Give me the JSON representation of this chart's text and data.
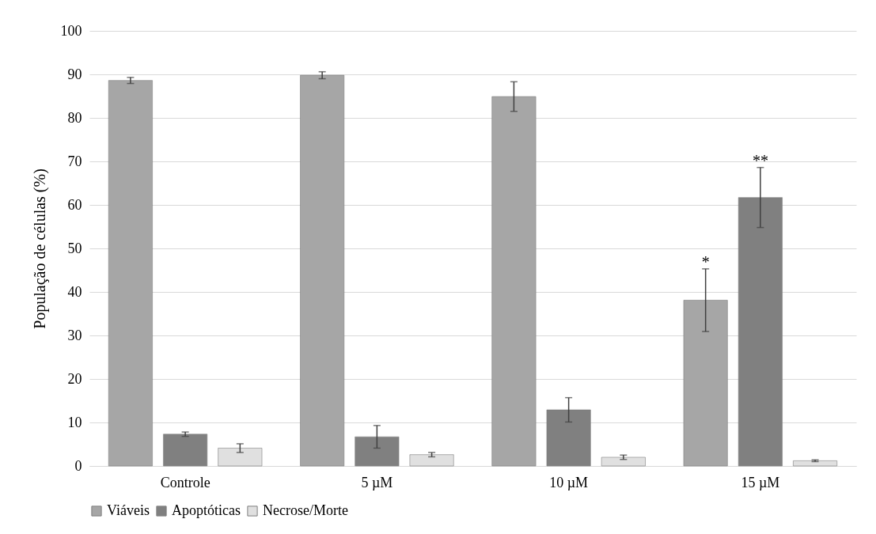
{
  "chart_data": {
    "type": "bar",
    "ylabel": "População de células (%)",
    "categories": [
      "Controle",
      "5 µM",
      "10 µM",
      "15 µM"
    ],
    "series": [
      {
        "name": "Viáveis",
        "color": "#a6a6a6",
        "values": [
          88.6,
          89.8,
          84.9,
          38.1
        ],
        "errors": [
          0.7,
          0.8,
          3.4,
          7.2
        ],
        "value_labels": [
          null,
          null,
          null,
          "*"
        ]
      },
      {
        "name": "Apoptóticas",
        "color": "#808080",
        "values": [
          7.3,
          6.7,
          12.9,
          61.7
        ],
        "errors": [
          0.5,
          2.6,
          2.8,
          6.9
        ],
        "value_labels": [
          null,
          null,
          null,
          "**"
        ]
      },
      {
        "name": "Necrose/Morte",
        "color": "#e0e0e0",
        "values": [
          4.1,
          2.6,
          2.0,
          1.2
        ],
        "errors": [
          1.0,
          0.5,
          0.5,
          0.2
        ]
      }
    ],
    "ylim": [
      0,
      100
    ],
    "yticks": [
      0,
      10,
      20,
      30,
      40,
      50,
      60,
      70,
      80,
      90,
      100
    ],
    "grid": "y",
    "legend": "bottom"
  }
}
